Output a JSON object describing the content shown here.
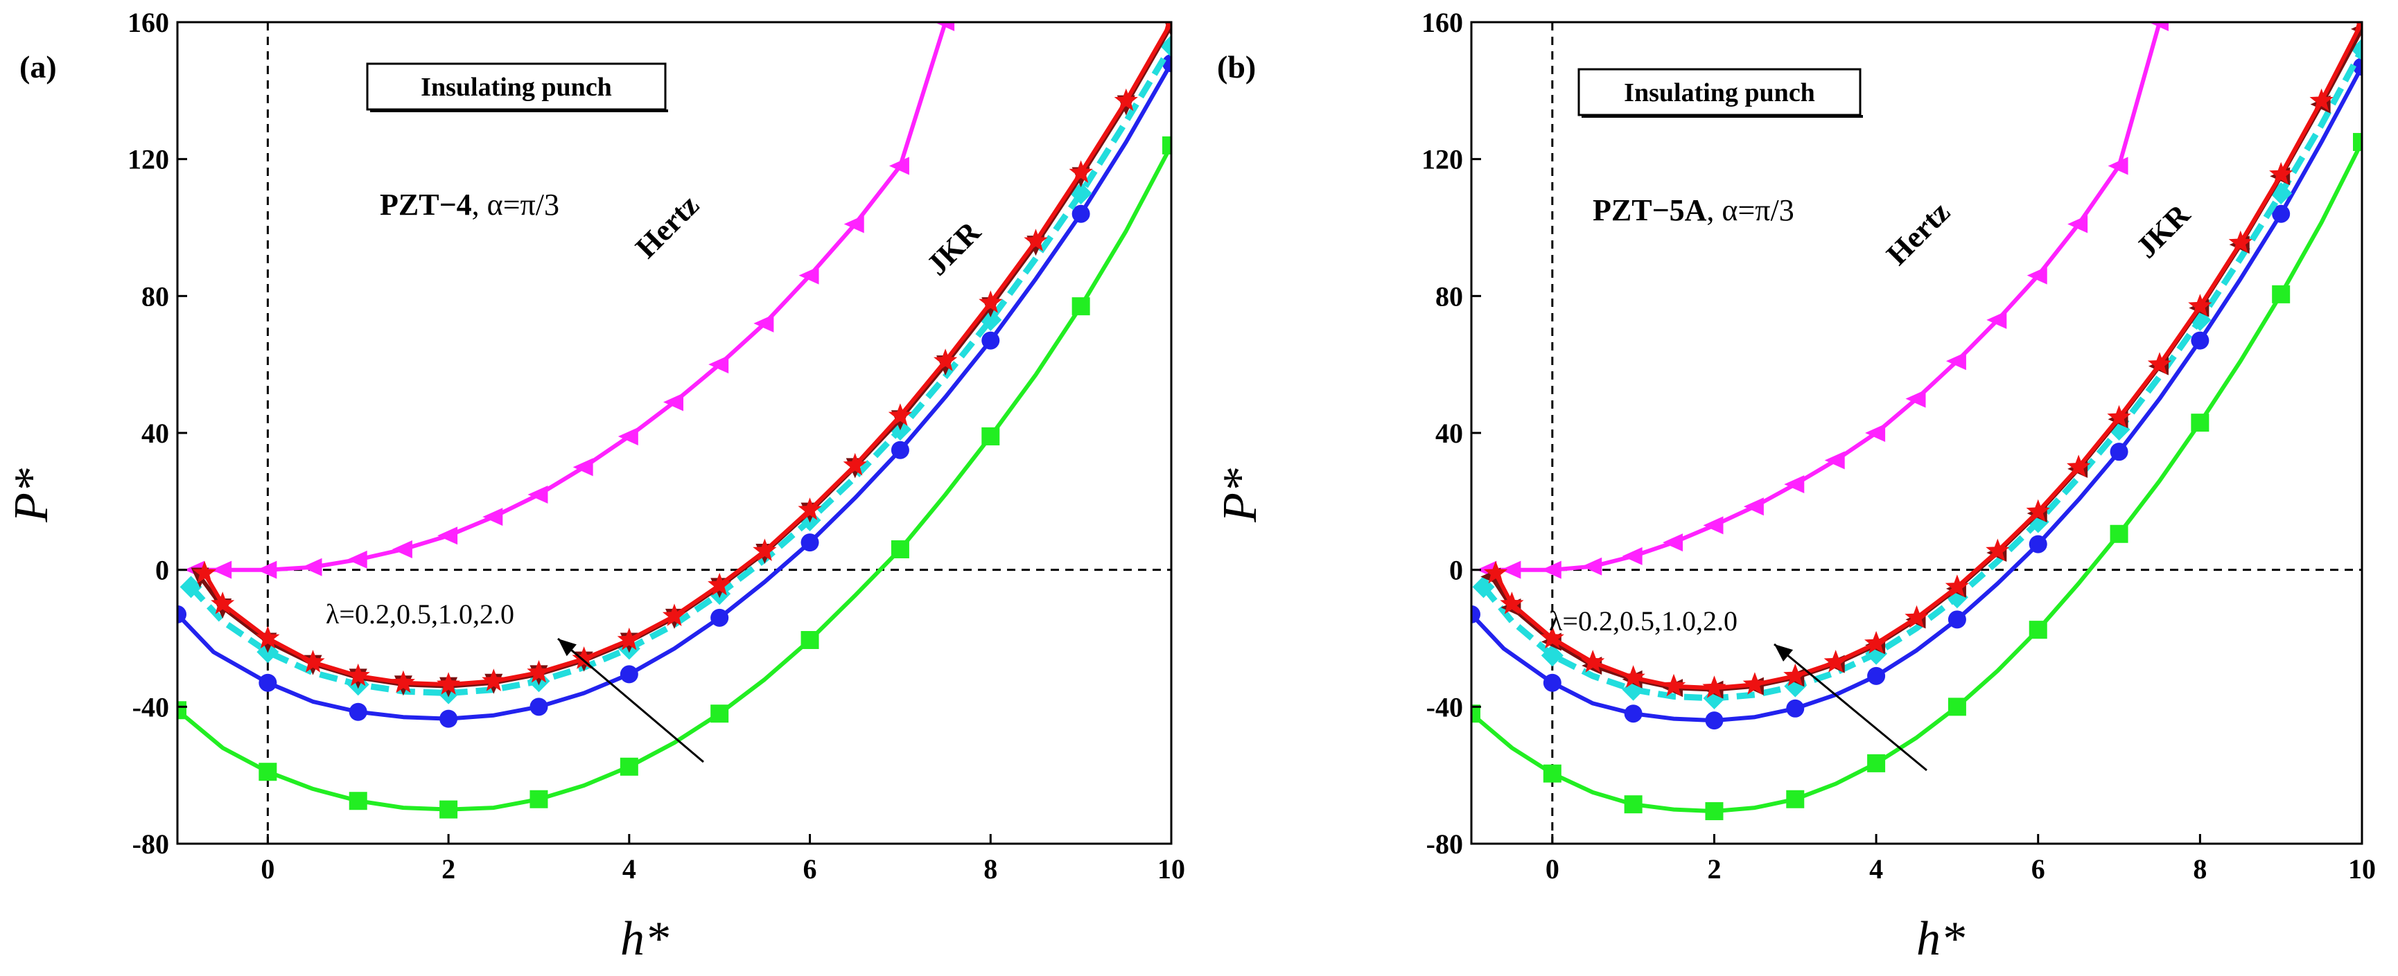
{
  "chart_data": [
    {
      "type": "line",
      "panel_label": "(a)",
      "box_title": "Insulating punch",
      "material": "PZT−4",
      "alpha_text": ", α=π/3",
      "xlabel": "h*",
      "ylabel": "P*",
      "xlim": [
        -1,
        10
      ],
      "ylim": [
        -80,
        160
      ],
      "xticks": [
        0,
        2,
        4,
        6,
        8,
        10
      ],
      "yticks": [
        -80,
        -40,
        0,
        40,
        80,
        120,
        160
      ],
      "grid": false,
      "reference_lines": {
        "x": 0,
        "y": 0,
        "style": "dashed"
      },
      "annotations": {
        "hertz": "Hertz",
        "jkr": "JKR",
        "lambda": "λ=0.2,0.5,1.0,2.0"
      },
      "series": [
        {
          "name": "Hertz",
          "color": "#ff22ff",
          "marker": "triangle-left",
          "x": [
            -0.8,
            -0.5,
            0,
            0.5,
            1,
            1.5,
            2,
            2.5,
            3,
            3.5,
            4,
            4.5,
            5,
            5.5,
            6,
            6.5,
            7,
            7.5
          ],
          "y": [
            0,
            0,
            0,
            0.8,
            3,
            6,
            10,
            15.5,
            22,
            30,
            39,
            49,
            60,
            72,
            86,
            101,
            118,
            160
          ]
        },
        {
          "name": "λ=0.2",
          "color": "#22ee22",
          "marker": "square",
          "x": [
            -1,
            -0.5,
            0,
            0.5,
            1,
            1.5,
            2,
            2.5,
            3,
            3.5,
            4,
            4.5,
            5,
            5.5,
            6,
            6.5,
            7,
            7.5,
            8,
            8.5,
            9,
            9.5,
            10
          ],
          "y": [
            -41,
            -52,
            -59,
            -64,
            -67.5,
            -69.5,
            -70,
            -69.5,
            -67,
            -63,
            -57.5,
            -50.5,
            -42,
            -32,
            -20.5,
            -7.5,
            6,
            22,
            39,
            57,
            77,
            99,
            124
          ]
        },
        {
          "name": "λ=0.5",
          "color": "#2222ee",
          "marker": "circle",
          "x": [
            -1,
            -0.6,
            0,
            0.5,
            1,
            1.5,
            2,
            2.5,
            3,
            3.5,
            4,
            4.5,
            5,
            5.5,
            6,
            6.5,
            7,
            7.5,
            8,
            8.5,
            9,
            9.5,
            10
          ],
          "y": [
            -13,
            -24,
            -33,
            -38.5,
            -41.5,
            -43,
            -43.5,
            -42.5,
            -40,
            -36,
            -30.5,
            -23,
            -14,
            -3.5,
            8,
            21,
            35,
            50.5,
            67,
            85,
            104,
            125,
            148
          ]
        },
        {
          "name": "λ=1.0",
          "color": "#22dddd",
          "marker": "diamond",
          "dashed": true,
          "x": [
            -0.85,
            -0.5,
            0,
            0.5,
            1,
            1.5,
            2,
            2.5,
            3,
            3.5,
            4,
            4.5,
            5,
            5.5,
            6,
            6.5,
            7,
            7.5,
            8,
            8.5,
            9,
            9.5,
            10
          ],
          "y": [
            -5,
            -15,
            -24,
            -30,
            -33.5,
            -35.5,
            -36,
            -35,
            -32.5,
            -28.5,
            -23,
            -16,
            -7,
            3,
            14.5,
            27,
            41,
            56.5,
            73,
            91,
            110,
            131,
            153
          ]
        },
        {
          "name": "λ=2.0a",
          "color": "#7a1010",
          "marker": "triangle-down",
          "x": [
            -0.75,
            -0.5,
            0,
            0.5,
            1,
            1.5,
            2,
            2.5,
            3,
            3.5,
            4,
            4.5,
            5,
            5.5,
            6,
            6.5,
            7,
            7.5,
            8,
            8.5,
            9,
            9.5,
            10
          ],
          "y": [
            -2,
            -11,
            -21,
            -27.5,
            -31.5,
            -33.5,
            -34,
            -33,
            -30.5,
            -26.5,
            -21,
            -14,
            -5,
            5,
            17,
            30,
            44,
            60,
            77,
            95,
            115,
            136,
            159
          ]
        },
        {
          "name": "λ=2.0",
          "color": "#ee1111",
          "marker": "star",
          "x": [
            -0.7,
            -0.5,
            0,
            0.5,
            1,
            1.5,
            2,
            2.5,
            3,
            3.5,
            4,
            4.5,
            5,
            5.5,
            6,
            6.5,
            7,
            7.5,
            8,
            8.5,
            9,
            9.5,
            10
          ],
          "y": [
            -1,
            -10,
            -20,
            -27,
            -31,
            -33,
            -33.5,
            -32.5,
            -30,
            -26,
            -20.5,
            -13.5,
            -4.5,
            5.5,
            17.5,
            30.5,
            45,
            61,
            78,
            96,
            116,
            137,
            160
          ]
        }
      ]
    },
    {
      "type": "line",
      "panel_label": "(b)",
      "box_title": "Insulating punch",
      "material": "PZT−5A",
      "alpha_text": ", α=π/3",
      "xlabel": "h*",
      "ylabel": "P*",
      "xlim": [
        -1,
        10
      ],
      "ylim": [
        -80,
        160
      ],
      "xticks": [
        0,
        2,
        4,
        6,
        8,
        10
      ],
      "yticks": [
        -80,
        -40,
        0,
        40,
        80,
        120,
        160
      ],
      "grid": false,
      "reference_lines": {
        "x": 0,
        "y": 0,
        "style": "dashed"
      },
      "annotations": {
        "hertz": "Hertz",
        "jkr": "JKR",
        "lambda": "λ=0.2,0.5,1.0,2.0"
      },
      "series": [
        {
          "name": "Hertz",
          "color": "#ff22ff",
          "marker": "triangle-left",
          "x": [
            -0.8,
            -0.5,
            0,
            0.5,
            1,
            1.5,
            2,
            2.5,
            3,
            3.5,
            4,
            4.5,
            5,
            5.5,
            6,
            6.5,
            7,
            7.5
          ],
          "y": [
            0,
            0,
            0,
            1,
            4,
            8,
            13,
            18.5,
            25,
            32,
            40,
            50,
            61,
            73,
            86,
            101,
            118,
            160
          ]
        },
        {
          "name": "λ=0.2",
          "color": "#22ee22",
          "marker": "square",
          "x": [
            -1,
            -0.5,
            0,
            0.5,
            1,
            1.5,
            2,
            2.5,
            3,
            3.5,
            4,
            4.5,
            5,
            5.5,
            6,
            6.5,
            7,
            7.5,
            8,
            8.5,
            9,
            9.5,
            10
          ],
          "y": [
            -42,
            -52,
            -59.5,
            -65,
            -68.5,
            -70,
            -70.5,
            -69.5,
            -67,
            -62.5,
            -56.5,
            -49,
            -40,
            -29.5,
            -17.5,
            -4,
            10.5,
            26,
            43,
            61,
            80.5,
            101.5,
            125
          ]
        },
        {
          "name": "λ=0.5",
          "color": "#2222ee",
          "marker": "circle",
          "x": [
            -1,
            -0.6,
            0,
            0.5,
            1,
            1.5,
            2,
            2.5,
            3,
            3.5,
            4,
            4.5,
            5,
            5.5,
            6,
            6.5,
            7,
            7.5,
            8,
            8.5,
            9,
            9.5,
            10
          ],
          "y": [
            -13,
            -23,
            -33,
            -39,
            -42,
            -43.5,
            -44,
            -43,
            -40.5,
            -36.5,
            -31,
            -23.5,
            -14.5,
            -4,
            7.5,
            20.5,
            34.5,
            50,
            67,
            85,
            104,
            125,
            147
          ]
        },
        {
          "name": "λ=1.0",
          "color": "#22dddd",
          "marker": "diamond",
          "dashed": true,
          "x": [
            -0.85,
            -0.5,
            0,
            0.5,
            1,
            1.5,
            2,
            2.5,
            3,
            3.5,
            4,
            4.5,
            5,
            5.5,
            6,
            6.5,
            7,
            7.5,
            8,
            8.5,
            9,
            9.5,
            10
          ],
          "y": [
            -5,
            -15,
            -25,
            -31,
            -35,
            -37,
            -37.5,
            -36.5,
            -34,
            -30,
            -24.5,
            -17,
            -8,
            2.5,
            14,
            27,
            41,
            56.5,
            73,
            91,
            110,
            130,
            152
          ]
        },
        {
          "name": "λ=2.0a",
          "color": "#7a1010",
          "marker": "triangle-left",
          "x": [
            -0.75,
            -0.5,
            0,
            0.5,
            1,
            1.5,
            2,
            2.5,
            3,
            3.5,
            4,
            4.5,
            5,
            5.5,
            6,
            6.5,
            7,
            7.5,
            8,
            8.5,
            9,
            9.5,
            10
          ],
          "y": [
            -2,
            -11,
            -21,
            -28,
            -32,
            -34.5,
            -35,
            -34,
            -31.5,
            -27.5,
            -22,
            -14.5,
            -5.5,
            5,
            16.5,
            29.5,
            44,
            59.5,
            76.5,
            95,
            115,
            136,
            158
          ]
        },
        {
          "name": "λ=2.0",
          "color": "#ee1111",
          "marker": "star",
          "x": [
            -0.7,
            -0.5,
            0,
            0.5,
            1,
            1.5,
            2,
            2.5,
            3,
            3.5,
            4,
            4.5,
            5,
            5.5,
            6,
            6.5,
            7,
            7.5,
            8,
            8.5,
            9,
            9.5,
            10
          ],
          "y": [
            -1,
            -10,
            -20,
            -27,
            -31.5,
            -34,
            -34.5,
            -33.5,
            -31,
            -27,
            -21.5,
            -14,
            -5,
            5.5,
            17,
            30,
            44.5,
            60,
            77,
            95.5,
            115.5,
            137,
            160
          ]
        }
      ]
    }
  ]
}
